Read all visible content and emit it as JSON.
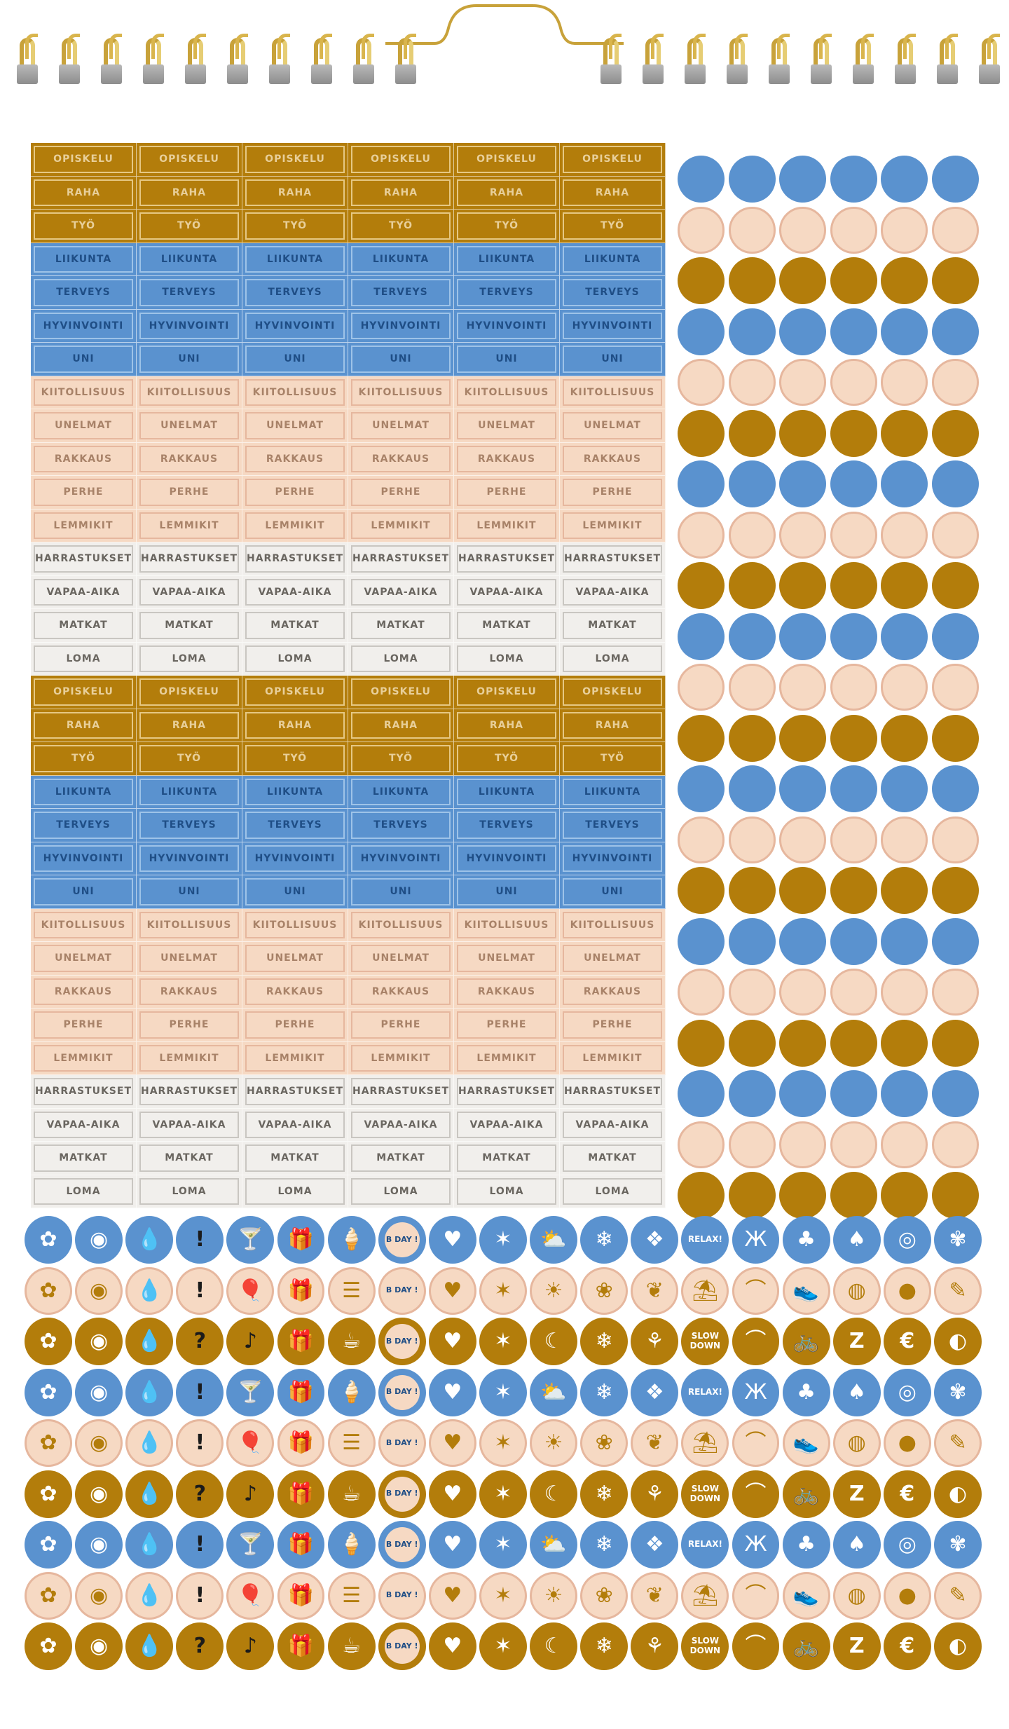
{
  "colors": {
    "gold": "#b37d0b",
    "gold_border": "#e6c884",
    "gold_text": "#e8cf9a",
    "blue": "#5a92cf",
    "blue_border": "#9ec3e8",
    "blue_text": "#1f4e86",
    "peach": "#f6d9c3",
    "peach_border": "#e6b79e",
    "peach_text": "#a88268",
    "grey": "#f1efec",
    "grey_border": "#c9c6c1",
    "grey_text": "#6a6660"
  },
  "labels": [
    {
      "text": "OPISKELU",
      "color": "gold"
    },
    {
      "text": "RAHA",
      "color": "gold"
    },
    {
      "text": "TYÖ",
      "color": "gold"
    },
    {
      "text": "LIIKUNTA",
      "color": "blue"
    },
    {
      "text": "TERVEYS",
      "color": "blue"
    },
    {
      "text": "HYVINVOINTI",
      "color": "blue"
    },
    {
      "text": "UNI",
      "color": "blue"
    },
    {
      "text": "KIITOLLISUUS",
      "color": "peach"
    },
    {
      "text": "UNELMAT",
      "color": "peach"
    },
    {
      "text": "RAKKAUS",
      "color": "peach"
    },
    {
      "text": "PERHE",
      "color": "peach"
    },
    {
      "text": "LEMMIKIT",
      "color": "peach"
    },
    {
      "text": "HARRASTUKSET",
      "color": "grey"
    },
    {
      "text": "VAPAA-AIKA",
      "color": "grey"
    },
    {
      "text": "MATKAT",
      "color": "grey"
    },
    {
      "text": "LOMA",
      "color": "grey"
    }
  ],
  "label_block_repeats": 2,
  "label_columns": 6,
  "dot_rows": [
    "blue",
    "peach",
    "gold",
    "blue",
    "peach",
    "gold",
    "blue",
    "peach",
    "gold",
    "blue",
    "peach",
    "gold",
    "blue",
    "peach",
    "gold",
    "blue",
    "peach",
    "gold",
    "blue",
    "peach",
    "gold"
  ],
  "dot_columns": 6,
  "icon_rows": [
    {
      "bg": "blue",
      "icons": [
        "flower-icon",
        "eye-icon",
        "drop-icon",
        "exclamation-icon",
        "cocktail-icon",
        "gift-icon",
        "ice-cream-icon",
        "bday-icon",
        "hearts-icon",
        "star-burst-icon",
        "sun-cloud-icon",
        "snowflake-icon",
        "ornament-icon",
        "relax-text",
        "butterfly-icon",
        "sprout-icon",
        "mushroom-icon",
        "egg-icon",
        "bouquet-icon"
      ]
    },
    {
      "bg": "peach",
      "icons": [
        "flower-icon",
        "eye-icon",
        "drop-icon",
        "exclamation-icon",
        "balloons-icon",
        "gift-icon",
        "list-icon",
        "bday-icon",
        "heart-icon",
        "star-burst-icon",
        "sun-icon",
        "scallop-flower-icon",
        "leaf-icon",
        "palm-island-icon",
        "swallow-icon",
        "sneaker-icon",
        "tennis-ball-icon",
        "lemon-icon",
        "pencil-icon"
      ]
    },
    {
      "bg": "gold",
      "icons": [
        "flower-icon",
        "eye-icon",
        "drop-icon",
        "question-icon",
        "music-note-icon",
        "gift-icon",
        "coffee-cup-icon",
        "bday-icon",
        "heart-icon",
        "star-burst-icon",
        "moon-icon",
        "snowflake-icon",
        "plant-icon",
        "slow-down-text",
        "swallow-icon",
        "bicycle-icon",
        "sleep-z-icon",
        "euro-icon",
        "palette-icon"
      ]
    },
    {
      "bg": "blue",
      "icons": [
        "flower-icon",
        "eye-icon",
        "drop-icon",
        "exclamation-icon",
        "cocktail-icon",
        "gift-icon",
        "ice-cream-icon",
        "bday-icon",
        "hearts-icon",
        "star-burst-icon",
        "sun-cloud-icon",
        "snowflake-icon",
        "ornament-icon",
        "relax-text",
        "butterfly-icon",
        "sprout-icon",
        "mushroom-icon",
        "egg-icon",
        "bouquet-icon"
      ]
    },
    {
      "bg": "peach",
      "icons": [
        "flower-icon",
        "eye-icon",
        "drop-icon",
        "exclamation-icon",
        "balloons-icon",
        "gift-icon",
        "list-icon",
        "bday-icon",
        "heart-icon",
        "star-burst-icon",
        "sun-icon",
        "scallop-flower-icon",
        "leaf-icon",
        "palm-island-icon",
        "swallow-icon",
        "sneaker-icon",
        "tennis-ball-icon",
        "lemon-icon",
        "pencil-icon"
      ]
    },
    {
      "bg": "gold",
      "icons": [
        "flower-icon",
        "eye-icon",
        "drop-icon",
        "question-icon",
        "music-note-icon",
        "gift-icon",
        "coffee-cup-icon",
        "bday-icon",
        "heart-icon",
        "star-burst-icon",
        "moon-icon",
        "snowflake-icon",
        "plant-icon",
        "slow-down-text",
        "swallow-icon",
        "bicycle-icon",
        "sleep-z-icon",
        "euro-icon",
        "palette-icon"
      ]
    },
    {
      "bg": "blue",
      "icons": [
        "flower-icon",
        "eye-icon",
        "drop-icon",
        "exclamation-icon",
        "cocktail-icon",
        "gift-icon",
        "ice-cream-icon",
        "bday-icon",
        "hearts-icon",
        "star-burst-icon",
        "sun-cloud-icon",
        "snowflake-icon",
        "ornament-icon",
        "relax-text",
        "butterfly-icon",
        "sprout-icon",
        "mushroom-icon",
        "egg-icon",
        "bouquet-icon"
      ]
    },
    {
      "bg": "peach",
      "icons": [
        "flower-icon",
        "eye-icon",
        "drop-icon",
        "exclamation-icon",
        "balloons-icon",
        "gift-icon",
        "list-icon",
        "bday-icon",
        "heart-icon",
        "star-burst-icon",
        "sun-icon",
        "scallop-flower-icon",
        "leaf-icon",
        "palm-island-icon",
        "swallow-icon",
        "sneaker-icon",
        "tennis-ball-icon",
        "lemon-icon",
        "pencil-icon"
      ]
    },
    {
      "bg": "gold",
      "icons": [
        "flower-icon",
        "eye-icon",
        "drop-icon",
        "question-icon",
        "music-note-icon",
        "gift-icon",
        "coffee-cup-icon",
        "bday-icon",
        "heart-icon",
        "star-burst-icon",
        "moon-icon",
        "snowflake-icon",
        "plant-icon",
        "slow-down-text",
        "swallow-icon",
        "bicycle-icon",
        "sleep-z-icon",
        "euro-icon",
        "palette-icon"
      ]
    }
  ],
  "icon_texts": {
    "relax-text": "RELAX!",
    "slow-down-text": "SLOW DOWN",
    "bday-text": "B DAY !"
  }
}
